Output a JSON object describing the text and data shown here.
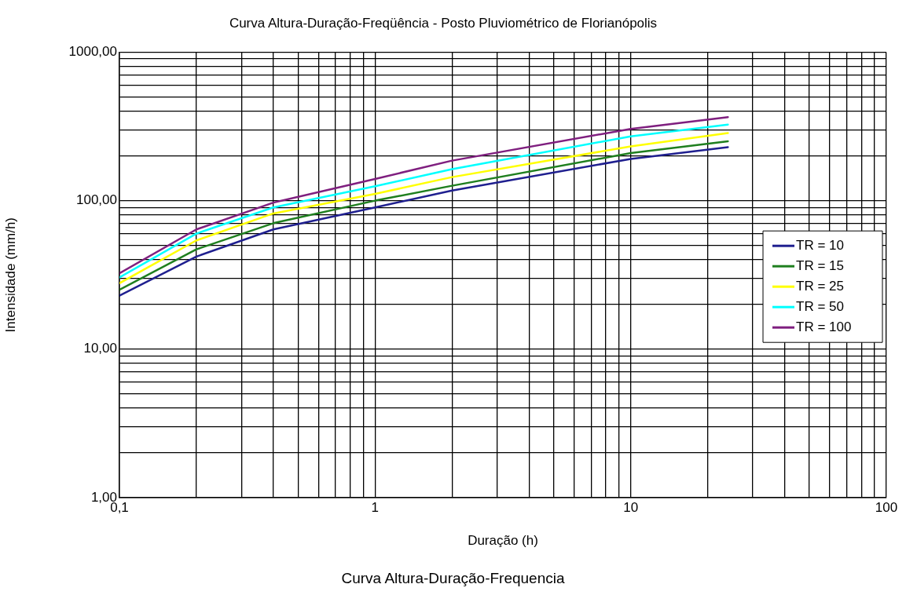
{
  "chart_data": {
    "type": "line",
    "title": "Curva Altura-Duração-Freqüência - Posto Pluviométrico de Florianópolis",
    "xlabel": "Duração (h)",
    "ylabel": "Intensidade (mm/h)",
    "annotations": [
      "Curva Altura-Duração-Frequencia"
    ],
    "x": [
      0.1,
      0.2,
      0.4,
      1,
      2,
      10,
      24
    ],
    "series": [
      {
        "name": "TR = 10",
        "color": "#1f1f8f",
        "values": [
          22.9,
          42,
          64,
          90,
          117,
          191,
          229
        ]
      },
      {
        "name": "TR = 15",
        "color": "#1f7f1f",
        "values": [
          25.1,
          47,
          70.5,
          100,
          126,
          209,
          251
        ]
      },
      {
        "name": "TR = 25",
        "color": "#ffff00",
        "values": [
          27.8,
          54,
          82,
          111,
          144,
          232,
          285
        ]
      },
      {
        "name": "TR = 50",
        "color": "#00ffff",
        "values": [
          30.4,
          60,
          90,
          125,
          163,
          271,
          325
        ]
      },
      {
        "name": "TR = 100",
        "color": "#7f1f7f",
        "values": [
          32.4,
          64,
          97,
          140,
          186,
          304,
          365
        ]
      }
    ],
    "log": "xy",
    "xlim": [
      0.1,
      100
    ],
    "ylim": [
      1,
      1000
    ],
    "xticks": [
      {
        "value": 0.1,
        "label": "0,1"
      },
      {
        "value": 0.2,
        "label": null
      },
      {
        "value": 0.3,
        "label": null
      },
      {
        "value": 0.4,
        "label": null
      },
      {
        "value": 0.5,
        "label": null
      },
      {
        "value": 0.6,
        "label": null
      },
      {
        "value": 0.7,
        "label": null
      },
      {
        "value": 0.8,
        "label": null
      },
      {
        "value": 0.9,
        "label": null
      },
      1,
      {
        "value": 2,
        "label": null
      },
      {
        "value": 3,
        "label": null
      },
      {
        "value": 4,
        "label": null
      },
      {
        "value": 5,
        "label": null
      },
      {
        "value": 6,
        "label": null
      },
      {
        "value": 7,
        "label": null
      },
      {
        "value": 8,
        "label": null
      },
      {
        "value": 9,
        "label": null
      },
      10,
      {
        "value": 20,
        "label": null
      },
      {
        "value": 30,
        "label": null
      },
      {
        "value": 40,
        "label": null
      },
      {
        "value": 50,
        "label": null
      },
      {
        "value": 60,
        "label": null
      },
      {
        "value": 70,
        "label": null
      },
      {
        "value": 80,
        "label": null
      },
      {
        "value": 90,
        "label": null
      },
      100
    ],
    "yticks": [
      {
        "value": 1,
        "label": "1,00"
      },
      {
        "value": 2,
        "label": null
      },
      {
        "value": 3,
        "label": null
      },
      {
        "value": 4,
        "label": null
      },
      {
        "value": 5,
        "label": null
      },
      {
        "value": 6,
        "label": null
      },
      {
        "value": 7,
        "label": null
      },
      {
        "value": 8,
        "label": null
      },
      {
        "value": 9,
        "label": null
      },
      {
        "value": 10,
        "label": "10,00"
      },
      {
        "value": 20,
        "label": null
      },
      {
        "value": 30,
        "label": null
      },
      {
        "value": 40,
        "label": null
      },
      {
        "value": 50,
        "label": null
      },
      {
        "value": 60,
        "label": null
      },
      {
        "value": 70,
        "label": null
      },
      {
        "value": 80,
        "label": null
      },
      {
        "value": 90,
        "label": null
      },
      {
        "value": 100,
        "label": "100,00"
      },
      {
        "value": 200,
        "label": null
      },
      {
        "value": 300,
        "label": null
      },
      {
        "value": 400,
        "label": null
      },
      {
        "value": 500,
        "label": null
      },
      {
        "value": 600,
        "label": null
      },
      {
        "value": 700,
        "label": null
      },
      {
        "value": 800,
        "label": null
      },
      {
        "value": 900,
        "label": null
      },
      {
        "value": 1000,
        "label": "1000,00"
      }
    ],
    "grid": true,
    "legend": "right",
    "marker": "none",
    "line_style": "solid"
  }
}
